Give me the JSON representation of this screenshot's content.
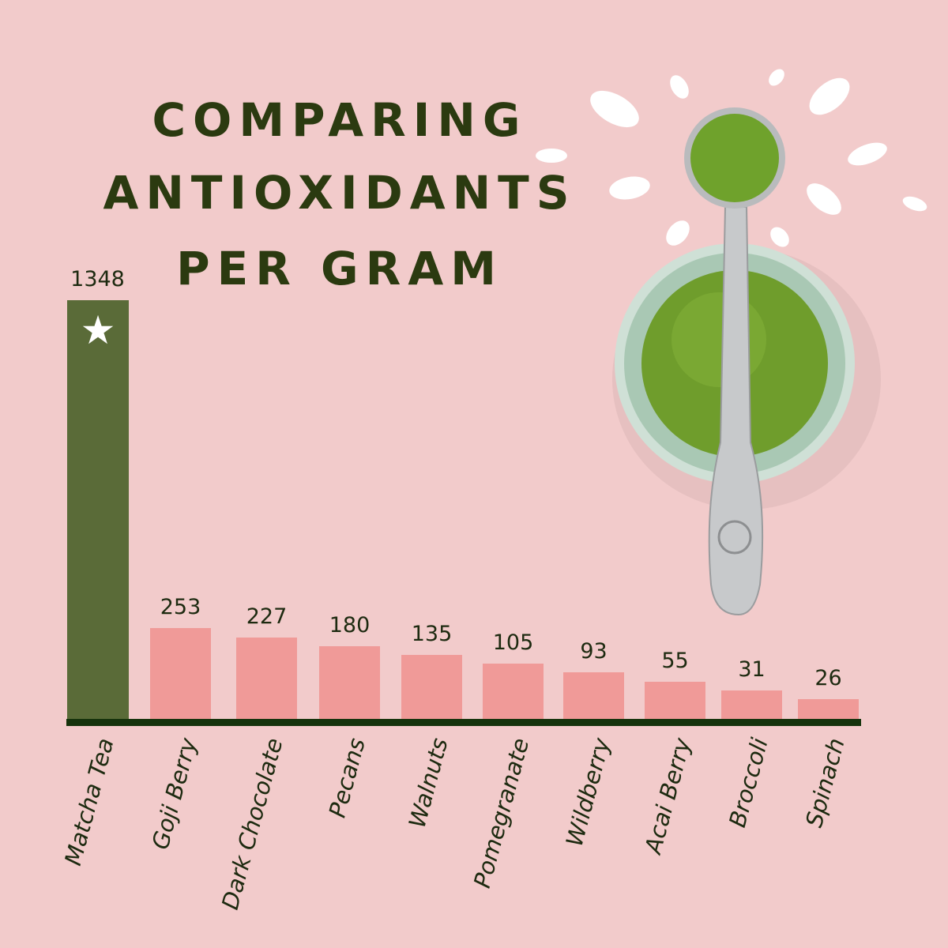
{
  "title_lines": [
    "COMPARING",
    "ANTIOXIDANTS",
    "PER GRAM"
  ],
  "colors": {
    "background": "#f2cbcb",
    "highlight_bar": "#5a6b38",
    "bar": "#f09a98",
    "axis": "#16330c",
    "text": "#2b3a10"
  },
  "chart_data": {
    "type": "bar",
    "title": "COMPARING ANTIOXIDANTS PER GRAM",
    "xlabel": "",
    "ylabel": "",
    "categories": [
      "Matcha Tea",
      "Goji Berry",
      "Dark Chocolate",
      "Pecans",
      "Walnuts",
      "Pomegranate",
      "Wildberry",
      "Acai Berry",
      "Broccoli",
      "Spinach"
    ],
    "values": [
      1348,
      253,
      227,
      180,
      135,
      105,
      93,
      55,
      31,
      26
    ],
    "value_labels": [
      "1348",
      "253",
      "227",
      "180",
      "135",
      "105",
      "93",
      "55",
      "31",
      "26"
    ],
    "highlight": "Matcha Tea",
    "highlight_icon": "star-icon",
    "grid": false
  }
}
